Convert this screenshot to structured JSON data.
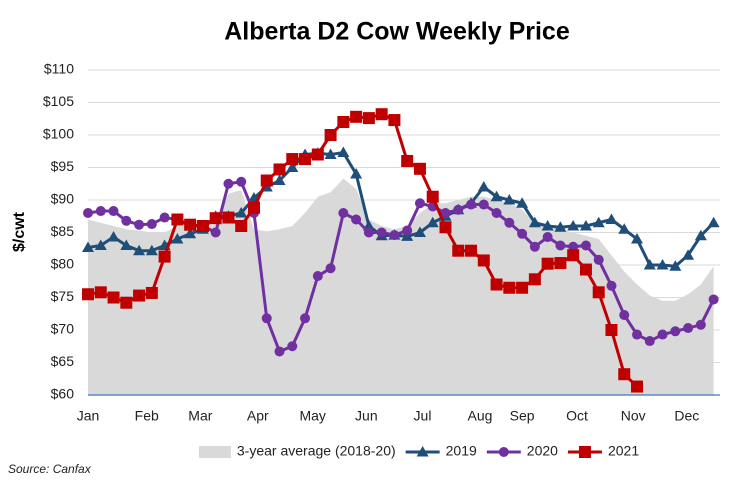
{
  "chart_data": {
    "type": "line",
    "title": "Alberta D2 Cow Weekly Price",
    "y_label": "$/cwt",
    "source": "Source: Canfax",
    "x": [
      1,
      2,
      3,
      4,
      5,
      6,
      7,
      8,
      9,
      10,
      11,
      12,
      13,
      14,
      15,
      16,
      17,
      18,
      19,
      20,
      21,
      22,
      23,
      24,
      25,
      26,
      27,
      28,
      29,
      30,
      31,
      32,
      33,
      34,
      35,
      36,
      37,
      38,
      39,
      40,
      41,
      42,
      43,
      44,
      45,
      46,
      47,
      48,
      49,
      50
    ],
    "xlim": [
      1,
      50.5
    ],
    "xticks": [
      {
        "value": 1,
        "label": "Jan"
      },
      {
        "value": 5.6,
        "label": "Feb"
      },
      {
        "value": 9.8,
        "label": "Mar"
      },
      {
        "value": 14.3,
        "label": "Apr"
      },
      {
        "value": 18.6,
        "label": "May"
      },
      {
        "value": 22.8,
        "label": "Jun"
      },
      {
        "value": 27.2,
        "label": "Jul"
      },
      {
        "value": 31.7,
        "label": "Aug"
      },
      {
        "value": 35.0,
        "label": "Sep"
      },
      {
        "value": 39.3,
        "label": "Oct"
      },
      {
        "value": 43.7,
        "label": "Nov"
      },
      {
        "value": 47.9,
        "label": "Dec"
      }
    ],
    "ylim": [
      60,
      110
    ],
    "yticks": [
      {
        "value": 60,
        "label": "$60"
      },
      {
        "value": 65,
        "label": "$65"
      },
      {
        "value": 70,
        "label": "$70"
      },
      {
        "value": 75,
        "label": "$75"
      },
      {
        "value": 80,
        "label": "$80"
      },
      {
        "value": 85,
        "label": "$85"
      },
      {
        "value": 90,
        "label": "$90"
      },
      {
        "value": 95,
        "label": "$95"
      },
      {
        "value": 100,
        "label": "$100"
      },
      {
        "value": 105,
        "label": "$105"
      },
      {
        "value": 110,
        "label": "$110"
      }
    ],
    "grid": true,
    "legend": "bottom",
    "series": [
      {
        "name": "3-year average (2018-20)",
        "type": "area",
        "color": "#d9d9d9",
        "values": [
          87,
          86.5,
          86,
          85.5,
          85.3,
          85,
          85,
          86,
          86,
          86,
          86.2,
          91,
          91.5,
          85.5,
          85.2,
          85.5,
          86,
          88,
          90.5,
          91.2,
          93.3,
          91.7,
          87,
          86,
          85.5,
          86,
          88,
          89.5,
          89.5,
          90,
          90.5,
          90.5,
          90,
          89.5,
          88.5,
          86.5,
          86,
          85.5,
          85,
          84.5,
          84,
          81.5,
          79,
          77,
          75.3,
          74.5,
          74.5,
          75.5,
          77,
          79.8
        ]
      },
      {
        "name": "2019",
        "type": "line",
        "marker": "triangle",
        "color": "#1f4e79",
        "values": [
          82.7,
          83,
          84.3,
          83,
          82.2,
          82.2,
          83,
          84,
          84.8,
          85.5,
          87.5,
          87.5,
          88,
          90.3,
          92,
          93,
          95,
          97,
          97.2,
          97,
          97.3,
          94,
          86,
          84.5,
          84.6,
          84.4,
          85,
          86.5,
          87.5,
          88.5,
          89.5,
          92,
          90.5,
          90,
          89.5,
          86.5,
          86,
          85.8,
          86,
          86,
          86.5,
          87,
          85.5,
          84,
          80,
          80,
          79.8,
          81.5,
          84.5,
          86.5
        ]
      },
      {
        "name": "2020",
        "type": "line",
        "marker": "circle",
        "color": "#7030a0",
        "values": [
          88,
          88.3,
          88.3,
          86.8,
          86.2,
          86.3,
          87.3,
          87,
          86,
          86,
          85,
          92.5,
          92.8,
          88,
          71.8,
          66.7,
          67.5,
          71.8,
          78.3,
          79.5,
          88,
          87,
          85,
          85,
          84.6,
          85.3,
          89.5,
          89,
          88,
          88.5,
          89.3,
          89.3,
          88,
          86.5,
          84.8,
          82.8,
          84.3,
          83,
          82.8,
          83,
          80.8,
          76.8,
          72.3,
          69.3,
          68.3,
          69.3,
          69.8,
          70.3,
          70.8,
          74.7
        ]
      },
      {
        "name": "2021",
        "type": "line",
        "marker": "square",
        "color": "#c00000",
        "values": [
          75.5,
          75.8,
          75,
          74.2,
          75.3,
          75.7,
          81.3,
          87,
          86.2,
          86,
          87.2,
          87.3,
          86,
          88.8,
          93,
          94.7,
          96.3,
          96.3,
          97,
          100,
          102,
          102.8,
          102.6,
          103.2,
          102.3,
          96,
          94.8,
          90.5,
          85.8,
          82.2,
          82.2,
          80.7,
          77,
          76.5,
          76.5,
          77.8,
          80.2,
          80.3,
          81.5,
          79.3,
          75.8,
          70,
          63.2,
          61.3,
          null,
          null,
          null,
          null,
          null,
          null
        ]
      }
    ]
  }
}
